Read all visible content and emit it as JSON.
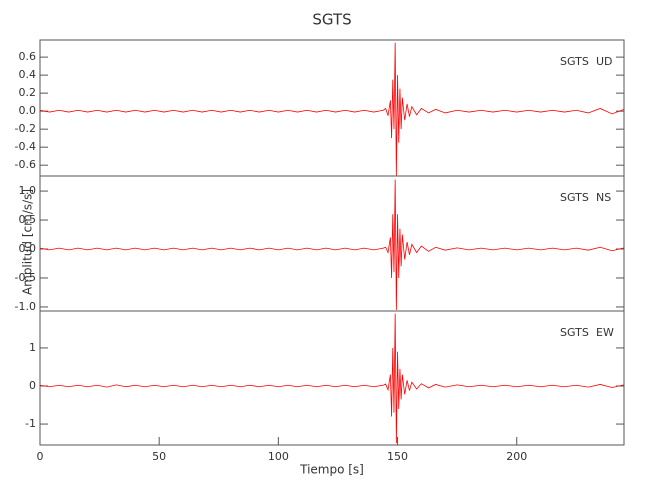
{
  "chart_data": [
    {
      "type": "line",
      "title": "SGTS",
      "station": "SGTS",
      "component": "UD",
      "xlim": [
        0,
        245
      ],
      "ylim": [
        -0.72,
        0.79
      ],
      "yticks": [
        0.6,
        0.4,
        0.2,
        {
          "value": 0,
          "label": "0.0"
        },
        -0.2,
        -0.4,
        -0.6
      ],
      "x": [
        0,
        4,
        8,
        12,
        16,
        20,
        24,
        28,
        32,
        36,
        40,
        44,
        48,
        52,
        56,
        60,
        64,
        68,
        72,
        76,
        80,
        84,
        88,
        92,
        96,
        100,
        104,
        108,
        112,
        116,
        120,
        124,
        128,
        132,
        136,
        140,
        144,
        145,
        146,
        147,
        147.5,
        148,
        148.5,
        149,
        149.5,
        150,
        150.5,
        151,
        151.5,
        152,
        153,
        154,
        155,
        156,
        158,
        160,
        163,
        166,
        170,
        175,
        180,
        185,
        190,
        195,
        200,
        205,
        210,
        215,
        220,
        225,
        230,
        235,
        240,
        245
      ],
      "series": [
        {
          "color": "#ff0000",
          "values": [
            0.01,
            -0.01,
            0.01,
            -0.01,
            0.01,
            -0.01,
            0.01,
            -0.01,
            0.01,
            -0.01,
            0.01,
            -0.01,
            0.01,
            -0.01,
            0.01,
            -0.01,
            0.01,
            -0.01,
            0.01,
            -0.01,
            0.01,
            -0.01,
            0.01,
            -0.01,
            0.01,
            -0.01,
            0.01,
            -0.01,
            0.01,
            -0.01,
            0.01,
            -0.01,
            0.01,
            -0.01,
            0.01,
            -0.01,
            0.01,
            0.03,
            -0.05,
            0.12,
            -0.3,
            0.35,
            -0.2,
            0.76,
            -0.72,
            0.4,
            -0.35,
            0.25,
            -0.2,
            0.15,
            -0.1,
            0.08,
            -0.06,
            0.05,
            -0.04,
            0.03,
            -0.02,
            0.02,
            -0.02,
            0.01,
            -0.01,
            0.01,
            -0.01,
            0.01,
            -0.01,
            0.01,
            -0.01,
            0.01,
            -0.01,
            0.01,
            -0.02,
            0.03,
            -0.03,
            0.02
          ]
        }
      ]
    },
    {
      "type": "line",
      "ylabel": "Amplitud [cm/s/s]",
      "station": "SGTS",
      "component": "NS",
      "xlim": [
        0,
        245
      ],
      "ylim": [
        -1.07,
        1.26
      ],
      "yticks": [
        {
          "value": 1,
          "label": "1.0"
        },
        0.5,
        {
          "value": 0,
          "label": "0.0"
        },
        -0.5,
        {
          "value": -1,
          "label": "-1.0"
        }
      ],
      "x": [
        0,
        4,
        8,
        12,
        16,
        20,
        24,
        28,
        32,
        36,
        40,
        44,
        48,
        52,
        56,
        60,
        64,
        68,
        72,
        76,
        80,
        84,
        88,
        92,
        96,
        100,
        104,
        108,
        112,
        116,
        120,
        124,
        128,
        132,
        136,
        140,
        144,
        145,
        146,
        147,
        147.5,
        148,
        148.5,
        149,
        149.5,
        150,
        150.5,
        151,
        151.5,
        152,
        153,
        154,
        155,
        156,
        158,
        160,
        163,
        166,
        170,
        175,
        180,
        185,
        190,
        195,
        200,
        205,
        210,
        215,
        220,
        225,
        230,
        235,
        240,
        245
      ],
      "series": [
        {
          "color": "#ff0000",
          "values": [
            0.015,
            -0.015,
            0.015,
            -0.015,
            0.015,
            -0.015,
            0.015,
            -0.015,
            0.015,
            -0.015,
            0.015,
            -0.015,
            0.015,
            -0.015,
            0.015,
            -0.015,
            0.015,
            -0.015,
            0.015,
            -0.015,
            0.015,
            -0.015,
            0.015,
            -0.015,
            0.015,
            -0.015,
            0.015,
            -0.015,
            0.015,
            -0.015,
            0.015,
            -0.015,
            0.015,
            -0.015,
            0.015,
            -0.015,
            0.015,
            0.03,
            -0.06,
            0.2,
            -0.5,
            0.6,
            -0.4,
            1.2,
            -1.05,
            0.6,
            -0.5,
            0.35,
            -0.3,
            0.25,
            -0.18,
            0.12,
            -0.1,
            0.08,
            -0.06,
            0.05,
            -0.04,
            0.03,
            -0.02,
            0.02,
            -0.015,
            0.015,
            -0.015,
            0.015,
            -0.015,
            0.015,
            -0.015,
            0.015,
            -0.015,
            0.015,
            -0.02,
            0.03,
            -0.03,
            0.02
          ]
        }
      ]
    },
    {
      "type": "line",
      "xlabel": "Tiempo [s]",
      "station": "SGTS",
      "component": "EW",
      "xlim": [
        0,
        245
      ],
      "ylim": [
        -1.55,
        1.97
      ],
      "yticks": [
        1,
        0,
        -1
      ],
      "xticks": [
        0,
        50,
        100,
        150,
        200
      ],
      "x": [
        0,
        4,
        8,
        12,
        16,
        20,
        24,
        28,
        32,
        36,
        40,
        44,
        48,
        52,
        56,
        60,
        64,
        68,
        72,
        76,
        80,
        84,
        88,
        92,
        96,
        100,
        104,
        108,
        112,
        116,
        120,
        124,
        128,
        132,
        136,
        140,
        144,
        145,
        146,
        147,
        147.5,
        148,
        148.5,
        149,
        149.5,
        150,
        150.5,
        151,
        151.5,
        152,
        153,
        154,
        155,
        156,
        158,
        160,
        163,
        166,
        170,
        175,
        180,
        185,
        190,
        195,
        200,
        205,
        210,
        215,
        220,
        225,
        230,
        235,
        240,
        245
      ],
      "series": [
        {
          "color": "#ff0000",
          "values": [
            0.02,
            -0.02,
            0.02,
            -0.02,
            0.02,
            -0.02,
            0.02,
            -0.03,
            0.03,
            -0.02,
            0.02,
            -0.02,
            0.02,
            -0.02,
            0.02,
            -0.02,
            0.02,
            -0.02,
            0.02,
            -0.02,
            0.02,
            -0.02,
            0.02,
            -0.02,
            0.02,
            -0.02,
            0.02,
            -0.02,
            0.02,
            -0.02,
            0.02,
            -0.02,
            0.02,
            -0.02,
            0.02,
            -0.02,
            0.02,
            0.05,
            -0.1,
            0.3,
            -0.8,
            1.0,
            -0.7,
            1.9,
            -1.5,
            0.9,
            -0.6,
            0.45,
            -0.35,
            0.3,
            -0.22,
            0.15,
            -0.12,
            0.1,
            -0.08,
            0.06,
            -0.05,
            0.04,
            -0.03,
            0.03,
            -0.02,
            0.02,
            -0.02,
            0.02,
            -0.02,
            0.02,
            -0.02,
            0.02,
            -0.02,
            0.02,
            -0.03,
            0.04,
            -0.04,
            0.03
          ]
        }
      ]
    }
  ]
}
